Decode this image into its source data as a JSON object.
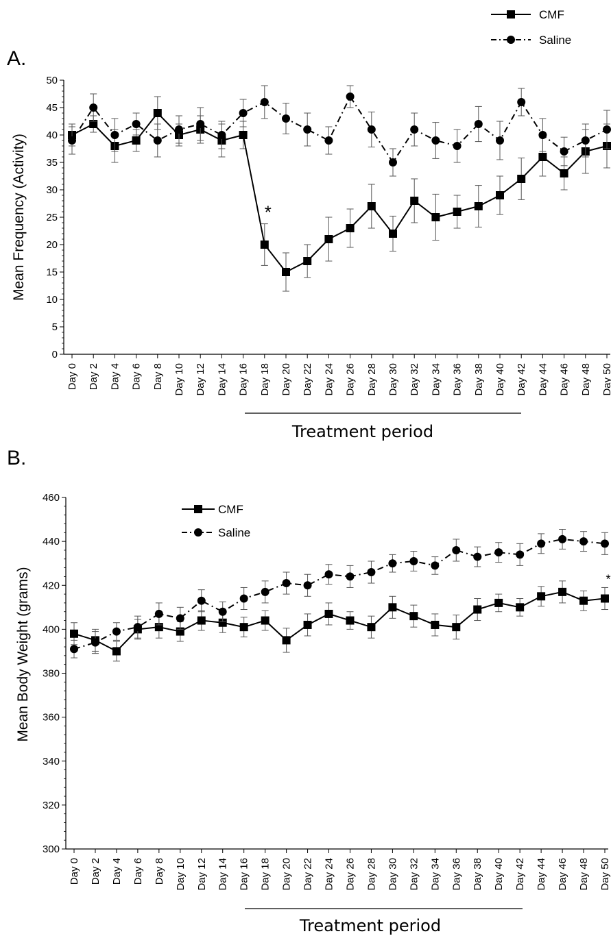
{
  "chart_data": [
    {
      "type": "line",
      "panel_label": "A.",
      "ylabel": "Mean Frequency (Activity)",
      "xlabel": "",
      "ylim": [
        0,
        50
      ],
      "yticks": [
        0,
        5,
        10,
        15,
        20,
        25,
        30,
        35,
        40,
        45,
        50
      ],
      "grid": false,
      "legend_position": "top-right",
      "categories": [
        "Day 0",
        "Day 2",
        "Day 4",
        "Day 6",
        "Day 8",
        "Day 10",
        "Day 12",
        "Day 14",
        "Day 16",
        "Day 18",
        "Day 20",
        "Day 22",
        "Day 24",
        "Day 26",
        "Day 28",
        "Day 30",
        "Day 32",
        "Day 34",
        "Day 36",
        "Day 38",
        "Day 40",
        "Day 42",
        "Day 44",
        "Day 46",
        "Day 48",
        "Day 50"
      ],
      "series": [
        {
          "name": "CMF",
          "marker": "square",
          "line": "solid",
          "values": [
            40,
            42,
            38,
            39,
            44,
            40,
            41,
            39,
            40,
            20,
            15,
            17,
            21,
            23,
            27,
            22,
            28,
            25,
            26,
            27,
            29,
            32,
            36,
            33,
            37,
            38
          ],
          "errors": [
            2,
            1.5,
            3,
            2,
            3,
            2,
            2.5,
            3,
            2.5,
            3.8,
            3.5,
            3,
            4,
            3.5,
            4,
            3.2,
            4,
            4.2,
            3,
            3.8,
            3.5,
            3.8,
            3.5,
            3,
            4,
            4
          ]
        },
        {
          "name": "Saline",
          "marker": "circle",
          "line": "dashdot",
          "values": [
            39,
            45,
            40,
            42,
            39,
            41,
            42,
            40,
            44,
            46,
            43,
            41,
            39,
            47,
            41,
            35,
            41,
            39,
            38,
            42,
            39,
            46,
            40,
            37,
            39,
            41
          ],
          "errors": [
            2.5,
            2.5,
            3,
            2,
            3,
            2.5,
            3,
            2.5,
            2.5,
            3,
            2.8,
            3,
            2.5,
            2,
            3.2,
            2.5,
            3,
            3.3,
            3,
            3.2,
            3.5,
            2.5,
            3,
            2.6,
            3,
            3.5
          ]
        }
      ],
      "annotations": [
        {
          "text": "*",
          "category": "Day 18"
        }
      ],
      "bracket": {
        "label": "Treatment period",
        "from": "Day 16",
        "to": "Day 42"
      }
    },
    {
      "type": "line",
      "panel_label": "B.",
      "ylabel": "Mean Body Weight (grams)",
      "xlabel": "",
      "ylim": [
        300,
        460
      ],
      "yticks": [
        300,
        320,
        340,
        360,
        380,
        400,
        420,
        440,
        460
      ],
      "grid": false,
      "legend_position": "top-left",
      "categories": [
        "Day 0",
        "Day 2",
        "Day 4",
        "Day 6",
        "Day 8",
        "Day 10",
        "Day 12",
        "Day 14",
        "Day 16",
        "Day 18",
        "Day 20",
        "Day 22",
        "Day 24",
        "Day 26",
        "Day 28",
        "Day 30",
        "Day 32",
        "Day 34",
        "Day 36",
        "Day 38",
        "Day 40",
        "Day 42",
        "Day 44",
        "Day 46",
        "Day 48",
        "Day 50"
      ],
      "series": [
        {
          "name": "CMF",
          "marker": "square",
          "line": "solid",
          "values": [
            398,
            395,
            390,
            400,
            401,
            399,
            404,
            403,
            401,
            404,
            395,
            402,
            407,
            404,
            401,
            410,
            406,
            402,
            401,
            409,
            412,
            410,
            415,
            417,
            413,
            414
          ],
          "errors": [
            5,
            5,
            4.5,
            4.5,
            5,
            4.5,
            4.5,
            4.5,
            4.5,
            4.5,
            5.5,
            5,
            5,
            4,
            5,
            5,
            5,
            5,
            5.5,
            5,
            4,
            4,
            4.5,
            5,
            4.5,
            5
          ]
        },
        {
          "name": "Saline",
          "marker": "circle",
          "line": "dashdot",
          "values": [
            391,
            394,
            399,
            401,
            407,
            405,
            413,
            408,
            414,
            417,
            421,
            420,
            425,
            424,
            426,
            430,
            431,
            429,
            436,
            433,
            435,
            434,
            439,
            441,
            440,
            439
          ],
          "errors": [
            4,
            5,
            4,
            5,
            5,
            5,
            5,
            4.5,
            5,
            5,
            5,
            5,
            4.5,
            5,
            5,
            4,
            4.5,
            4,
            5,
            4.5,
            4.5,
            5,
            4.5,
            4.5,
            4.5,
            5
          ]
        }
      ],
      "annotations": [
        {
          "text": "*",
          "category": "Day 50"
        }
      ],
      "bracket": {
        "label": "Treatment period",
        "from": "Day 16",
        "to": "Day 42"
      }
    }
  ]
}
